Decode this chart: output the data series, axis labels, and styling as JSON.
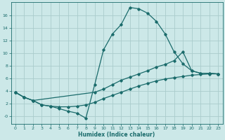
{
  "xlabel": "Humidex (Indice chaleur)",
  "background_color": "#cce8e8",
  "line_color": "#1a6b6b",
  "grid_color": "#aacccc",
  "xlim": [
    -0.5,
    23.5
  ],
  "ylim": [
    -1.2,
    18.0
  ],
  "xticks": [
    0,
    1,
    2,
    3,
    4,
    5,
    6,
    7,
    8,
    9,
    10,
    11,
    12,
    13,
    14,
    15,
    16,
    17,
    18,
    19,
    20,
    21,
    22,
    23
  ],
  "yticks": [
    0,
    2,
    4,
    6,
    8,
    10,
    12,
    14,
    16
  ],
  "line1_x": [
    0,
    1,
    2,
    3,
    4,
    5,
    6,
    7,
    8,
    9,
    10,
    11,
    12,
    13,
    14,
    15,
    16,
    17,
    18,
    19,
    20,
    21,
    22,
    23
  ],
  "line1_y": [
    3.8,
    3.0,
    2.5,
    1.8,
    1.6,
    1.2,
    0.8,
    0.5,
    -0.3,
    5.0,
    10.5,
    13.0,
    14.5,
    17.2,
    17.0,
    16.3,
    15.0,
    13.0,
    10.2,
    8.3,
    7.2,
    6.8,
    6.8,
    6.7
  ],
  "line2_x": [
    0,
    1,
    2,
    9,
    10,
    11,
    12,
    13,
    14,
    15,
    16,
    17,
    18,
    19,
    20,
    21,
    22,
    23
  ],
  "line2_y": [
    3.8,
    3.0,
    2.5,
    3.8,
    4.3,
    5.0,
    5.7,
    6.2,
    6.7,
    7.2,
    7.8,
    8.2,
    8.8,
    10.2,
    7.2,
    6.8,
    6.8,
    6.7
  ],
  "line3_x": [
    0,
    1,
    2,
    3,
    4,
    5,
    6,
    7,
    8,
    9,
    10,
    11,
    12,
    13,
    14,
    15,
    16,
    17,
    18,
    19,
    20,
    21,
    22,
    23
  ],
  "line3_y": [
    3.8,
    3.0,
    2.5,
    1.8,
    1.6,
    1.5,
    1.5,
    1.6,
    1.8,
    2.2,
    2.8,
    3.3,
    3.8,
    4.3,
    4.8,
    5.2,
    5.6,
    5.9,
    6.1,
    6.3,
    6.5,
    6.6,
    6.7,
    6.7
  ]
}
